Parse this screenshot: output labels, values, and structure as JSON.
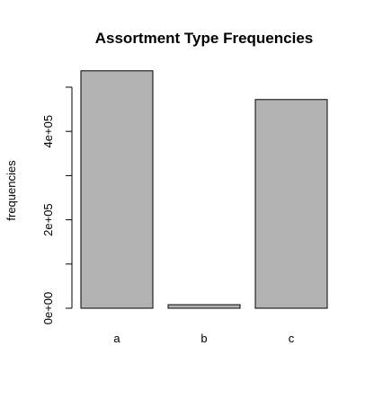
{
  "chart_data": {
    "type": "bar",
    "title": "Assortment Type Frequencies",
    "xlabel": "",
    "ylabel": "frequencies",
    "categories": [
      "a",
      "b",
      "c"
    ],
    "values": [
      537000,
      8000,
      472000
    ],
    "ylim": [
      0,
      500000
    ],
    "yticks": [
      0,
      100000,
      200000,
      300000,
      400000,
      500000
    ],
    "ytick_labels": [
      "0e+00",
      "",
      "2e+05",
      "",
      "4e+05",
      ""
    ],
    "grid": false,
    "bar_color": "#b3b3b3",
    "bar_edge_color": "#000000"
  }
}
